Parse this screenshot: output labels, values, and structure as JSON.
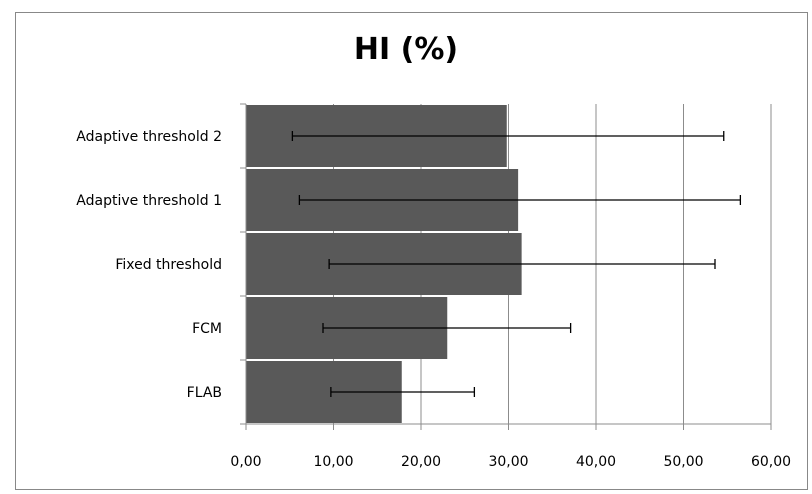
{
  "chart_data": {
    "type": "bar",
    "orientation": "horizontal",
    "title": "HI (%)",
    "xlabel": "",
    "ylabel": "",
    "categories": [
      "Adaptive threshold 2",
      "Adaptive threshold 1",
      "Fixed threshold",
      "FCM",
      "FLAB"
    ],
    "values": [
      29.8,
      31.1,
      31.5,
      23.0,
      17.8
    ],
    "error_low": [
      5.3,
      6.1,
      9.5,
      8.8,
      9.7
    ],
    "error_high": [
      54.6,
      56.5,
      53.6,
      37.1,
      26.1
    ],
    "xlim": [
      0,
      60
    ],
    "xticks": [
      0,
      10,
      20,
      30,
      40,
      50,
      60
    ],
    "xtick_labels": [
      "0,00",
      "10,00",
      "20,00",
      "30,00",
      "40,00",
      "50,00",
      "60,00"
    ],
    "grid": "vertical",
    "legend": "none",
    "colors": {
      "bar": "#595959",
      "grid": "#8c8c8c",
      "error": "#000000"
    }
  }
}
